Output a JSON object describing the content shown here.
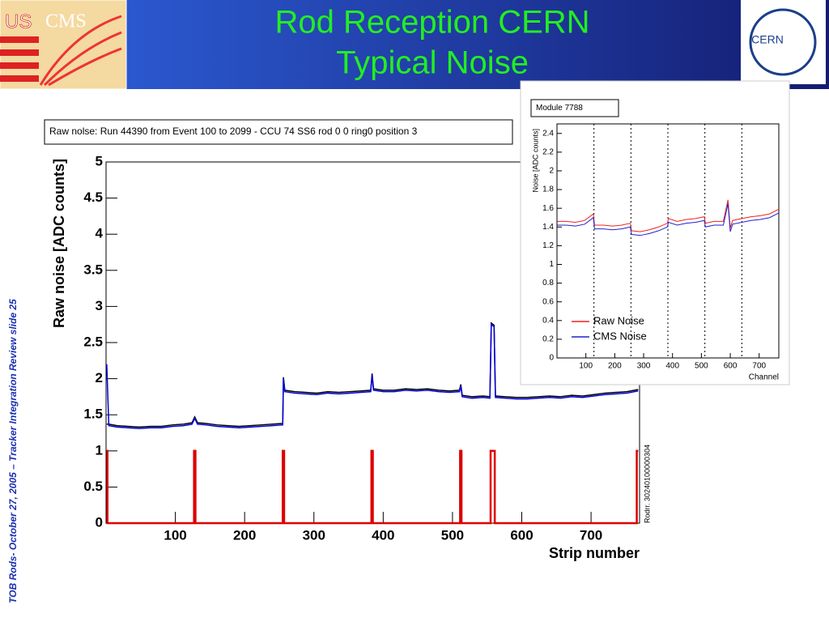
{
  "slide": {
    "title_lines": [
      "Rod Reception CERN",
      "Typical Noise"
    ],
    "side_text": "TOB Rods- October 27, 2005 – Tracker Integration Review  slide 25",
    "logo_left": [
      "US",
      "CMS"
    ],
    "logo_right": "CERN"
  },
  "chart_data": [
    {
      "type": "line",
      "title": "Raw nolse: Run 44390 from Event 100 to 2099 - CCU 74 SS6 rod 0 0 ring0 position 3",
      "xlabel": "Strip number",
      "ylabel": "Raw noise [ADC counts]",
      "side_label": "Rodrr. 30240100000304",
      "xlim": [
        0,
        770
      ],
      "ylim": [
        0,
        5
      ],
      "xticks": [
        100,
        200,
        300,
        400,
        500,
        600,
        700
      ],
      "yticks": [
        0,
        0.5,
        1,
        1.5,
        2,
        2.5,
        3,
        3.5,
        4,
        4.5,
        5
      ],
      "series": [
        {
          "color": "#000000",
          "x": [
            1,
            4,
            16,
            32,
            48,
            64,
            80,
            96,
            112,
            124,
            128,
            132,
            144,
            160,
            176,
            192,
            208,
            224,
            240,
            255,
            256,
            258,
            272,
            288,
            304,
            320,
            336,
            352,
            368,
            382,
            384,
            386,
            400,
            416,
            432,
            448,
            464,
            480,
            496,
            510,
            512,
            514,
            528,
            544,
            554,
            556,
            560,
            562,
            576,
            592,
            608,
            624,
            640,
            656,
            672,
            688,
            704,
            720,
            736,
            752,
            768
          ],
          "values": [
            1.37,
            1.37,
            1.35,
            1.34,
            1.33,
            1.34,
            1.34,
            1.36,
            1.37,
            1.39,
            1.47,
            1.39,
            1.38,
            1.36,
            1.35,
            1.34,
            1.35,
            1.36,
            1.37,
            1.38,
            2.02,
            1.84,
            1.82,
            1.81,
            1.8,
            1.82,
            1.81,
            1.82,
            1.83,
            1.84,
            2.07,
            1.86,
            1.84,
            1.84,
            1.86,
            1.85,
            1.86,
            1.84,
            1.83,
            1.84,
            1.92,
            1.77,
            1.75,
            1.76,
            1.75,
            2.77,
            2.74,
            1.76,
            1.75,
            1.74,
            1.74,
            1.75,
            1.76,
            1.75,
            1.77,
            1.76,
            1.78,
            1.8,
            1.81,
            1.82,
            1.85
          ]
        },
        {
          "color": "#0000dd",
          "x": [
            1,
            4,
            16,
            32,
            48,
            64,
            80,
            96,
            112,
            124,
            128,
            132,
            144,
            160,
            176,
            192,
            208,
            224,
            240,
            255,
            256,
            258,
            272,
            288,
            304,
            320,
            336,
            352,
            368,
            382,
            384,
            386,
            400,
            416,
            432,
            448,
            464,
            480,
            496,
            510,
            512,
            514,
            528,
            544,
            554,
            556,
            560,
            562,
            576,
            592,
            608,
            624,
            640,
            656,
            672,
            688,
            704,
            720,
            736,
            752,
            768
          ],
          "values": [
            2.2,
            1.35,
            1.33,
            1.32,
            1.31,
            1.32,
            1.32,
            1.34,
            1.35,
            1.37,
            1.45,
            1.37,
            1.36,
            1.34,
            1.33,
            1.32,
            1.33,
            1.34,
            1.35,
            1.36,
            2.0,
            1.82,
            1.8,
            1.79,
            1.78,
            1.8,
            1.79,
            1.8,
            1.81,
            1.82,
            2.05,
            1.84,
            1.82,
            1.82,
            1.84,
            1.83,
            1.84,
            1.82,
            1.81,
            1.82,
            1.9,
            1.75,
            1.73,
            1.74,
            1.73,
            2.75,
            2.72,
            1.74,
            1.73,
            1.72,
            1.72,
            1.73,
            1.74,
            1.73,
            1.75,
            1.74,
            1.76,
            1.78,
            1.79,
            1.8,
            1.83
          ]
        },
        {
          "color": "#dd0000",
          "x": [
            1,
            2,
            2,
            127,
            127,
            129,
            129,
            255,
            255,
            257,
            257,
            383,
            383,
            385,
            385,
            511,
            511,
            513,
            513,
            555,
            555,
            561,
            561,
            766,
            766,
            768
          ],
          "values": [
            1,
            1,
            0,
            0,
            1,
            1,
            0,
            0,
            1,
            1,
            0,
            0,
            1,
            1,
            0,
            0,
            1,
            1,
            0,
            0,
            1,
            1,
            0,
            0,
            1,
            1
          ]
        }
      ]
    },
    {
      "type": "line",
      "title": "Module 7788",
      "xlabel": "Channel",
      "ylabel": "Noise [ADC counts]",
      "legend": "bottom-left",
      "xlim": [
        0,
        768
      ],
      "ylim": [
        0,
        2.45
      ],
      "xticks": [
        100,
        200,
        300,
        400,
        500,
        600,
        700
      ],
      "yticks": [
        0,
        0.2,
        0.4,
        0.6,
        0.8,
        1,
        1.2,
        1.4,
        1.6,
        1.8,
        2,
        2.2,
        2.4
      ],
      "vlines": [
        128,
        256,
        384,
        512,
        640
      ],
      "series": [
        {
          "name": "Raw Noise",
          "color": "#ee2222",
          "x": [
            1,
            32,
            64,
            96,
            126,
            130,
            160,
            192,
            224,
            254,
            258,
            288,
            320,
            352,
            382,
            386,
            416,
            448,
            480,
            510,
            514,
            544,
            576,
            592,
            600,
            608,
            640,
            672,
            704,
            736,
            768
          ],
          "values": [
            1.46,
            1.46,
            1.45,
            1.47,
            1.54,
            1.42,
            1.42,
            1.41,
            1.42,
            1.44,
            1.36,
            1.35,
            1.37,
            1.4,
            1.44,
            1.49,
            1.46,
            1.48,
            1.49,
            1.51,
            1.44,
            1.46,
            1.46,
            1.69,
            1.39,
            1.47,
            1.49,
            1.51,
            1.52,
            1.54,
            1.59
          ]
        },
        {
          "name": "CMS Noise",
          "color": "#2222cc",
          "x": [
            1,
            32,
            64,
            96,
            126,
            130,
            160,
            192,
            224,
            254,
            258,
            288,
            320,
            352,
            382,
            386,
            416,
            448,
            480,
            510,
            514,
            544,
            576,
            592,
            600,
            608,
            640,
            672,
            704,
            736,
            768
          ],
          "values": [
            1.42,
            1.42,
            1.41,
            1.43,
            1.5,
            1.38,
            1.38,
            1.37,
            1.38,
            1.4,
            1.32,
            1.31,
            1.33,
            1.36,
            1.4,
            1.45,
            1.42,
            1.44,
            1.45,
            1.47,
            1.4,
            1.42,
            1.42,
            1.65,
            1.35,
            1.43,
            1.45,
            1.47,
            1.48,
            1.5,
            1.55
          ]
        }
      ]
    }
  ]
}
